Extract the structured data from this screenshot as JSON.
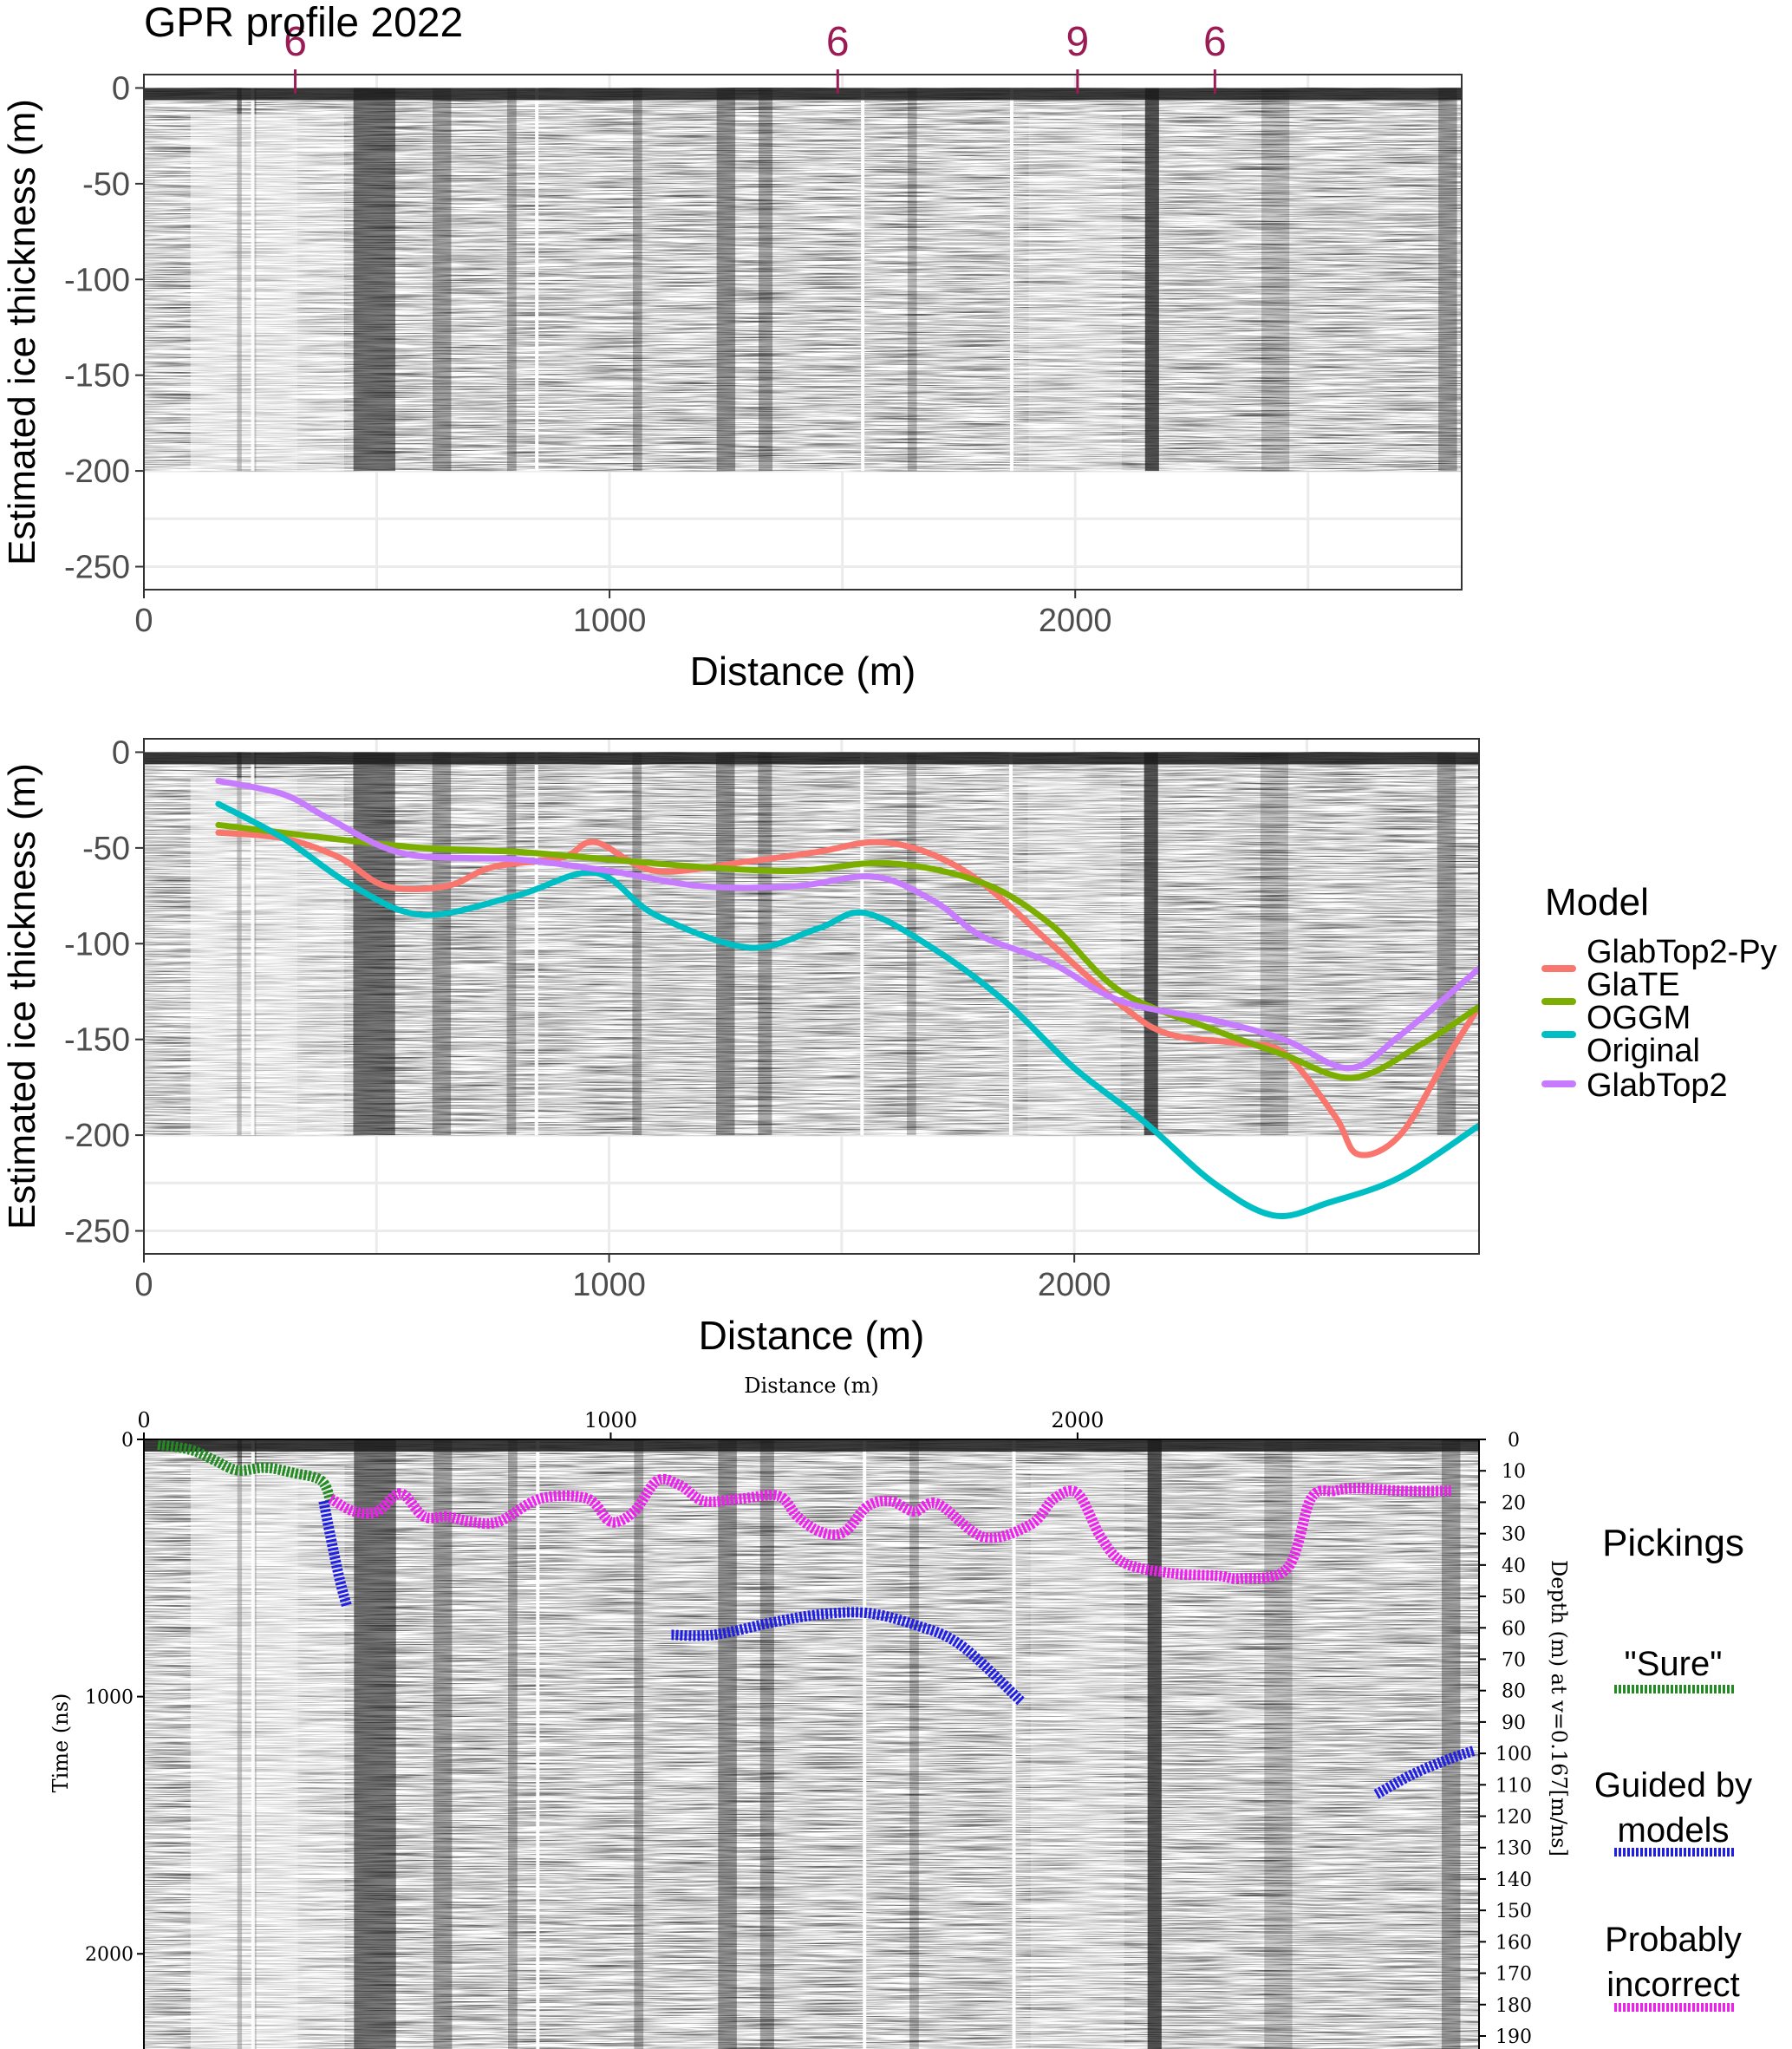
{
  "colors": {
    "glabtop2_py": "#F8766D",
    "glate": "#7CAE00",
    "oggm": "#00BFC4",
    "original_glabtop2": "#C77CFF",
    "sure": "#228B22",
    "guided": "#1E1EE6",
    "incorrect": "#F01EF0",
    "marker": "#9B1B55",
    "radargram": "#1a1a1a"
  },
  "chart_data": [
    {
      "type": "heatmap",
      "title": "GPR profile 2022",
      "xlabel": "Distance (m)",
      "ylabel": "Estimated ice thickness (m)",
      "xlim": [
        0,
        2830
      ],
      "ylim": [
        -262,
        7
      ],
      "x_ticks": [
        0,
        1000,
        2000
      ],
      "y_ticks": [
        0,
        -50,
        -100,
        -150,
        -200,
        -250
      ],
      "x_tick_labels": [
        "0",
        "1000",
        "2000"
      ],
      "y_tick_labels": [
        "0",
        "-50",
        "-100",
        "-150",
        "-200",
        "-250"
      ],
      "grid": true,
      "radargram_depth_range": [
        -200,
        0
      ],
      "markers": [
        {
          "x": 325,
          "label": "6"
        },
        {
          "x": 1490,
          "label": "6"
        },
        {
          "x": 2005,
          "label": "9"
        },
        {
          "x": 2300,
          "label": "6"
        }
      ]
    },
    {
      "type": "line",
      "xlabel": "Distance (m)",
      "ylabel": "Estimated ice thickness (m)",
      "xlim": [
        0,
        2870
      ],
      "ylim": [
        -262,
        7
      ],
      "x_ticks": [
        0,
        1000,
        2000
      ],
      "y_ticks": [
        0,
        -50,
        -100,
        -150,
        -200,
        -250
      ],
      "x_tick_labels": [
        "0",
        "1000",
        "2000"
      ],
      "y_tick_labels": [
        "0",
        "-50",
        "-100",
        "-150",
        "-200",
        "-250"
      ],
      "grid": true,
      "radargram_depth_range": [
        -200,
        0
      ],
      "legend_title": "Model",
      "legend_position": "right",
      "series": [
        {
          "name": "GlabTop2-Py",
          "label_lines": [
            "GlabTop2-Py"
          ],
          "color_key": "glabtop2_py",
          "x": [
            160,
            300,
            420,
            520,
            650,
            750,
            900,
            970,
            1100,
            1300,
            1450,
            1570,
            1680,
            1800,
            1950,
            2100,
            2200,
            2350,
            2450,
            2560,
            2610,
            2700,
            2800,
            2870
          ],
          "y": [
            -42,
            -45,
            -55,
            -70,
            -70,
            -60,
            -55,
            -47,
            -62,
            -57,
            -52,
            -47,
            -52,
            -68,
            -100,
            -132,
            -147,
            -152,
            -157,
            -190,
            -210,
            -200,
            -160,
            -133
          ]
        },
        {
          "name": "GlaTE",
          "label_lines": [
            "GlaTE"
          ],
          "color_key": "glate",
          "x": [
            160,
            400,
            600,
            800,
            1000,
            1200,
            1400,
            1600,
            1800,
            1950,
            2100,
            2300,
            2450,
            2600,
            2750,
            2870
          ],
          "y": [
            -38,
            -45,
            -50,
            -52,
            -56,
            -60,
            -62,
            -58,
            -68,
            -90,
            -125,
            -145,
            -158,
            -170,
            -152,
            -133
          ]
        },
        {
          "name": "OGGM",
          "label_lines": [
            "OGGM"
          ],
          "color_key": "oggm",
          "x": [
            160,
            300,
            450,
            600,
            800,
            970,
            1100,
            1300,
            1450,
            1550,
            1700,
            1850,
            2000,
            2150,
            2300,
            2430,
            2550,
            2700,
            2870
          ],
          "y": [
            -27,
            -45,
            -70,
            -85,
            -75,
            -63,
            -85,
            -102,
            -92,
            -84,
            -103,
            -130,
            -165,
            -193,
            -225,
            -242,
            -235,
            -222,
            -195
          ]
        },
        {
          "name": "Original GlabTop2",
          "label_lines": [
            "Original",
            "GlabTop2"
          ],
          "color_key": "original_glabtop2",
          "x": [
            160,
            300,
            400,
            560,
            800,
            1000,
            1200,
            1400,
            1570,
            1700,
            1800,
            1950,
            2100,
            2300,
            2450,
            2590,
            2700,
            2870
          ],
          "y": [
            -15,
            -22,
            -35,
            -53,
            -56,
            -62,
            -70,
            -70,
            -65,
            -78,
            -96,
            -110,
            -130,
            -140,
            -150,
            -165,
            -148,
            -113
          ]
        }
      ]
    },
    {
      "type": "scatter",
      "title": "Distance (m)",
      "xlabel": "Distance (m)",
      "ylabel": "Time (ns)",
      "ylabel_right": "Depth (m) at v=0.167[m/ns]",
      "xlim": [
        0,
        2860
      ],
      "ylim_time": [
        0,
        2370
      ],
      "x_ticks": [
        0,
        1000,
        2000
      ],
      "x_tick_labels": [
        "0",
        "1000",
        "2000"
      ],
      "y_ticks_time": [
        0,
        1000,
        2000
      ],
      "y_tick_labels_time": [
        "0",
        "1000",
        "2000"
      ],
      "y_ticks_depth": [
        0,
        10,
        20,
        30,
        40,
        50,
        60,
        70,
        80,
        90,
        100,
        110,
        120,
        130,
        140,
        150,
        160,
        170,
        180,
        190
      ],
      "y_tick_labels_depth": [
        "0",
        "10",
        "20",
        "30",
        "40",
        "50",
        "60",
        "70",
        "80",
        "90",
        "100",
        "110",
        "120",
        "130",
        "140",
        "150",
        "160",
        "170",
        "180",
        "190"
      ],
      "legend_title": "Pickings",
      "legend_position": "right",
      "series": [
        {
          "name": "\"Sure\"",
          "color_key": "sure",
          "x": [
            30,
            100,
            150,
            200,
            260,
            320,
            380,
            400
          ],
          "y": [
            20,
            40,
            80,
            120,
            110,
            130,
            160,
            240
          ]
        },
        {
          "name": "Guided by models",
          "color_key": "guided",
          "x": [
            385,
            400,
            420,
            435,
            1130,
            1220,
            1350,
            1450,
            1550,
            1650,
            1750,
            1880,
            2640,
            2720,
            2800,
            2850
          ],
          "y": [
            240,
            380,
            550,
            650,
            760,
            760,
            710,
            680,
            675,
            720,
            800,
            1020,
            1380,
            1300,
            1240,
            1210
          ]
        },
        {
          "name": "Probably incorrect",
          "color_key": "incorrect",
          "x": [
            400,
            450,
            500,
            550,
            600,
            650,
            700,
            760,
            850,
            950,
            1000,
            1050,
            1100,
            1150,
            1200,
            1280,
            1360,
            1400,
            1450,
            1500,
            1550,
            1600,
            1650,
            1700,
            1800,
            1900,
            1950,
            2000,
            2050,
            2100,
            2200,
            2300,
            2350,
            2450,
            2500,
            2550,
            2600,
            2700,
            2800
          ],
          "y": [
            230,
            280,
            280,
            210,
            300,
            300,
            320,
            320,
            230,
            230,
            320,
            280,
            160,
            180,
            240,
            230,
            220,
            300,
            360,
            360,
            260,
            240,
            280,
            250,
            380,
            330,
            230,
            210,
            380,
            480,
            520,
            530,
            540,
            500,
            230,
            200,
            190,
            200,
            200
          ]
        }
      ]
    }
  ]
}
